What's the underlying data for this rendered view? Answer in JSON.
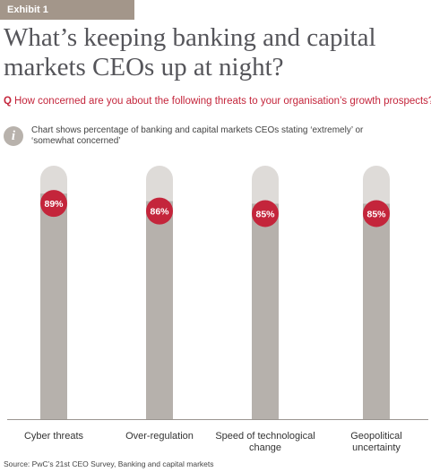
{
  "header": {
    "exhibit": "Exhibit 1",
    "title": "What’s keeping banking and capital markets CEOs up at night?",
    "question_marker": "Q",
    "question": "How concerned are you about the following threats to your organisation’s growth prospects?",
    "note": "Chart shows percentage of banking and capital markets CEOs stating ‘extremely’ or ‘somewhat concerned’",
    "info_icon": "info-icon"
  },
  "colors": {
    "tag_bg": "#a3968a",
    "bar": "#b6b1ac",
    "bar_track": "#dedbd8",
    "marker": "#c4253b",
    "question": "#c4253b"
  },
  "chart_data": {
    "type": "bar",
    "categories": [
      "Cyber threats",
      "Over-regulation",
      "Speed of technological change",
      "Geopolitical uncertainty"
    ],
    "category_lines": [
      [
        "Cyber threats"
      ],
      [
        "Over-regulation"
      ],
      [
        "Speed of technological",
        "change"
      ],
      [
        "Geopolitical",
        "uncertainty"
      ]
    ],
    "values": [
      89,
      86,
      85,
      85
    ],
    "value_labels": [
      "89%",
      "86%",
      "85%",
      "85%"
    ],
    "ylim": [
      0,
      100
    ],
    "title": "",
    "xlabel": "",
    "ylabel": "",
    "grid": false
  },
  "footer": {
    "source": "Source: PwC’s 21st CEO Survey, Banking and capital markets"
  }
}
